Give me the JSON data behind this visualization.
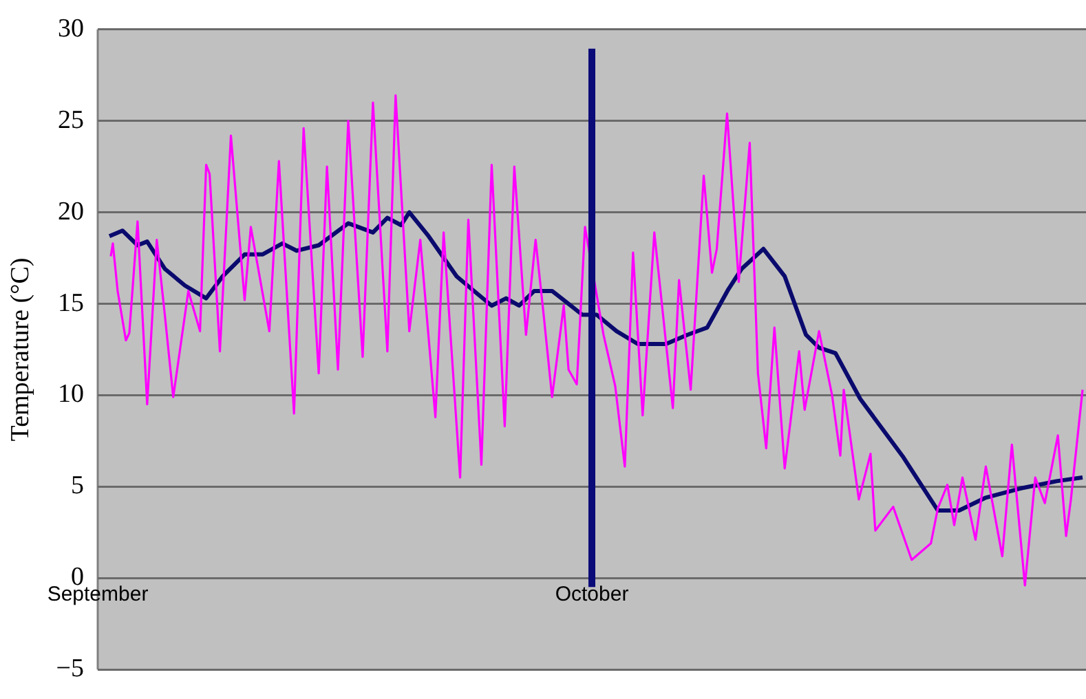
{
  "chart_data": {
    "type": "line",
    "ylabel": "Temperature (°C)",
    "xlim": [
      "--09-01",
      "--10-31"
    ],
    "xticks": [
      {
        "value": "--09-01",
        "label": "September"
      },
      {
        "value": "--10-01",
        "label": "October"
      }
    ],
    "ylim": [
      -5,
      30
    ],
    "yticks": [
      -5,
      0,
      5,
      10,
      15,
      20,
      25,
      30
    ],
    "grid": "y",
    "legend": false,
    "marker": "none",
    "line_style": "solid",
    "ref_lines": [
      {
        "axis": "x",
        "value": "--10-01",
        "color": "#0a0a78"
      }
    ],
    "series": [
      {
        "color": "#ff00ff",
        "x": [
          "--09-01T19:00",
          "--09-01T22:00",
          "--09-02T05:00",
          "--09-02T17:00",
          "--09-02T22:00",
          "--09-03T10:00",
          "--09-04T00:00",
          "--09-04T14:00",
          "--09-05T02:00",
          "--09-05T14:00",
          "--09-06T12:00",
          "--09-07T05:00",
          "--09-07T14:00",
          "--09-07T19:00",
          "--09-08T10:00",
          "--09-09T02:00",
          "--09-09T22:00",
          "--09-10T07:00",
          "--09-10T17:00",
          "--09-11T10:00",
          "--09-12T00:00",
          "--09-12T22:00",
          "--09-13T12:00",
          "--09-14T10:00",
          "--09-14T22:00",
          "--09-15T14:00",
          "--09-16T05:00",
          "--09-17T02:00",
          "--09-17T17:00",
          "--09-18T14:00",
          "--09-19T02:00",
          "--09-19T22:00",
          "--09-20T14:00",
          "--09-21T12:00",
          "--09-22T00:00",
          "--09-23T00:00",
          "--09-23T12:00",
          "--09-24T07:00",
          "--09-24T22:00",
          "--09-25T17:00",
          "--09-26T07:00",
          "--09-27T00:00",
          "--09-27T14:00",
          "--09-28T02:00",
          "--09-28T14:00",
          "--09-29T07:00",
          "--09-29T14:00",
          "--09-30T02:00",
          "--09-30T14:00",
          "--10-01T00:00",
          "--10-01T17:00",
          "--10-02T10:00",
          "--10-03T00:00",
          "--10-03T12:00",
          "--10-04T02:00",
          "--10-04T19:00",
          "--10-05T22:00",
          "--10-06T07:00",
          "--10-07T00:00",
          "--10-07T19:00",
          "--10-08T07:00",
          "--10-08T14:00",
          "--10-09T05:00",
          "--10-09T22:00",
          "--10-10T14:00",
          "--10-11T02:00",
          "--10-11T14:00",
          "--10-12T02:00",
          "--10-12T17:00",
          "--10-13T14:00",
          "--10-13T22:00",
          "--10-14T19:00",
          "--10-15T14:00",
          "--10-16T02:00",
          "--10-16T07:00",
          "--10-17T05:00",
          "--10-17T22:00",
          "--10-18T05:00",
          "--10-19T07:00",
          "--10-20T10:00",
          "--10-21T14:00",
          "--10-22T00:00",
          "--10-22T14:00",
          "--10-23T00:00",
          "--10-23T12:00",
          "--10-24T07:00",
          "--10-24T22:00",
          "--10-25T22:00",
          "--10-26T12:00",
          "--10-27T07:00",
          "--10-27T22:00",
          "--10-28T12:00",
          "--10-29T07:00",
          "--10-29T19:00",
          "--10-30T02:00",
          "--10-30T19:00"
        ],
        "values": [
          17.6,
          18.3,
          15.7,
          13.0,
          13.4,
          19.5,
          9.5,
          18.5,
          14.3,
          9.9,
          15.7,
          13.5,
          22.6,
          22.1,
          12.4,
          24.2,
          15.2,
          19.2,
          17.1,
          13.5,
          22.8,
          9.0,
          24.6,
          11.2,
          22.5,
          11.4,
          25.0,
          12.1,
          26.0,
          12.4,
          26.4,
          13.5,
          18.5,
          8.8,
          18.9,
          5.5,
          19.6,
          6.2,
          22.6,
          8.3,
          22.5,
          13.3,
          18.5,
          14.3,
          9.9,
          14.9,
          11.4,
          10.6,
          19.2,
          null,
          13.3,
          10.5,
          6.1,
          17.8,
          8.9,
          18.9,
          9.3,
          16.3,
          10.3,
          22.0,
          16.7,
          18.0,
          25.4,
          16.2,
          23.8,
          11.2,
          7.1,
          13.7,
          6.0,
          12.4,
          9.2,
          13.5,
          10.0,
          6.7,
          10.3,
          4.3,
          6.8,
          2.6,
          3.9,
          1.0,
          1.9,
          3.8,
          5.1,
          2.9,
          5.5,
          2.1,
          6.1,
          1.2,
          7.3,
          -0.4,
          5.5,
          4.1,
          7.8,
          2.3,
          4.3,
          10.3
        ]
      },
      {
        "color": "#0a0a6e",
        "x": [
          "--09-01T17:00",
          "--09-02T12:00",
          "--09-03T10:00",
          "--09-04T00:00",
          "--09-05T02:00",
          "--09-06T07:00",
          "--09-07T14:00",
          "--09-08T14:00",
          "--09-09T22:00",
          "--09-11T00:00",
          "--09-12T05:00",
          "--09-13T02:00",
          "--09-14T10:00",
          "--09-16T05:00",
          "--09-17T17:00",
          "--09-18T14:00",
          "--09-19T10:00",
          "--09-19T22:00",
          "--09-21T02:00",
          "--09-22T19:00",
          "--09-23T17:00",
          "--09-24T22:00",
          "--09-25T19:00",
          "--09-26T14:00",
          "--09-27T12:00",
          "--09-28T14:00",
          "--09-29T14:00",
          "--09-30T10:00",
          "--10-01T07:00",
          "--10-02T12:00",
          "--10-03T19:00",
          "--10-05T12:00",
          "--10-06T19:00",
          "--10-08T00:00",
          "--10-09T07:00",
          "--10-10T02:00",
          "--10-11T10:00",
          "--10-12T17:00",
          "--10-14T00:00",
          "--10-14T19:00",
          "--10-15T19:00",
          "--10-17T07:00",
          "--10-19T22:00",
          "--10-22T00:00",
          "--10-23T07:00",
          "--10-24T22:00",
          "--10-27T00:00",
          "--10-29T05:00",
          "--10-30T19:00"
        ],
        "values": [
          18.7,
          19.0,
          18.2,
          18.4,
          16.9,
          16.0,
          15.3,
          16.5,
          17.7,
          17.7,
          18.3,
          17.9,
          18.2,
          19.4,
          18.9,
          19.7,
          19.3,
          20.0,
          18.7,
          16.5,
          15.8,
          14.9,
          15.3,
          14.9,
          15.7,
          15.7,
          15.0,
          14.4,
          14.4,
          13.5,
          12.8,
          12.8,
          13.3,
          13.7,
          15.8,
          16.9,
          18.0,
          16.5,
          13.3,
          12.6,
          12.3,
          9.8,
          6.6,
          3.7,
          3.7,
          4.4,
          4.9,
          5.3,
          5.5
        ]
      }
    ]
  }
}
